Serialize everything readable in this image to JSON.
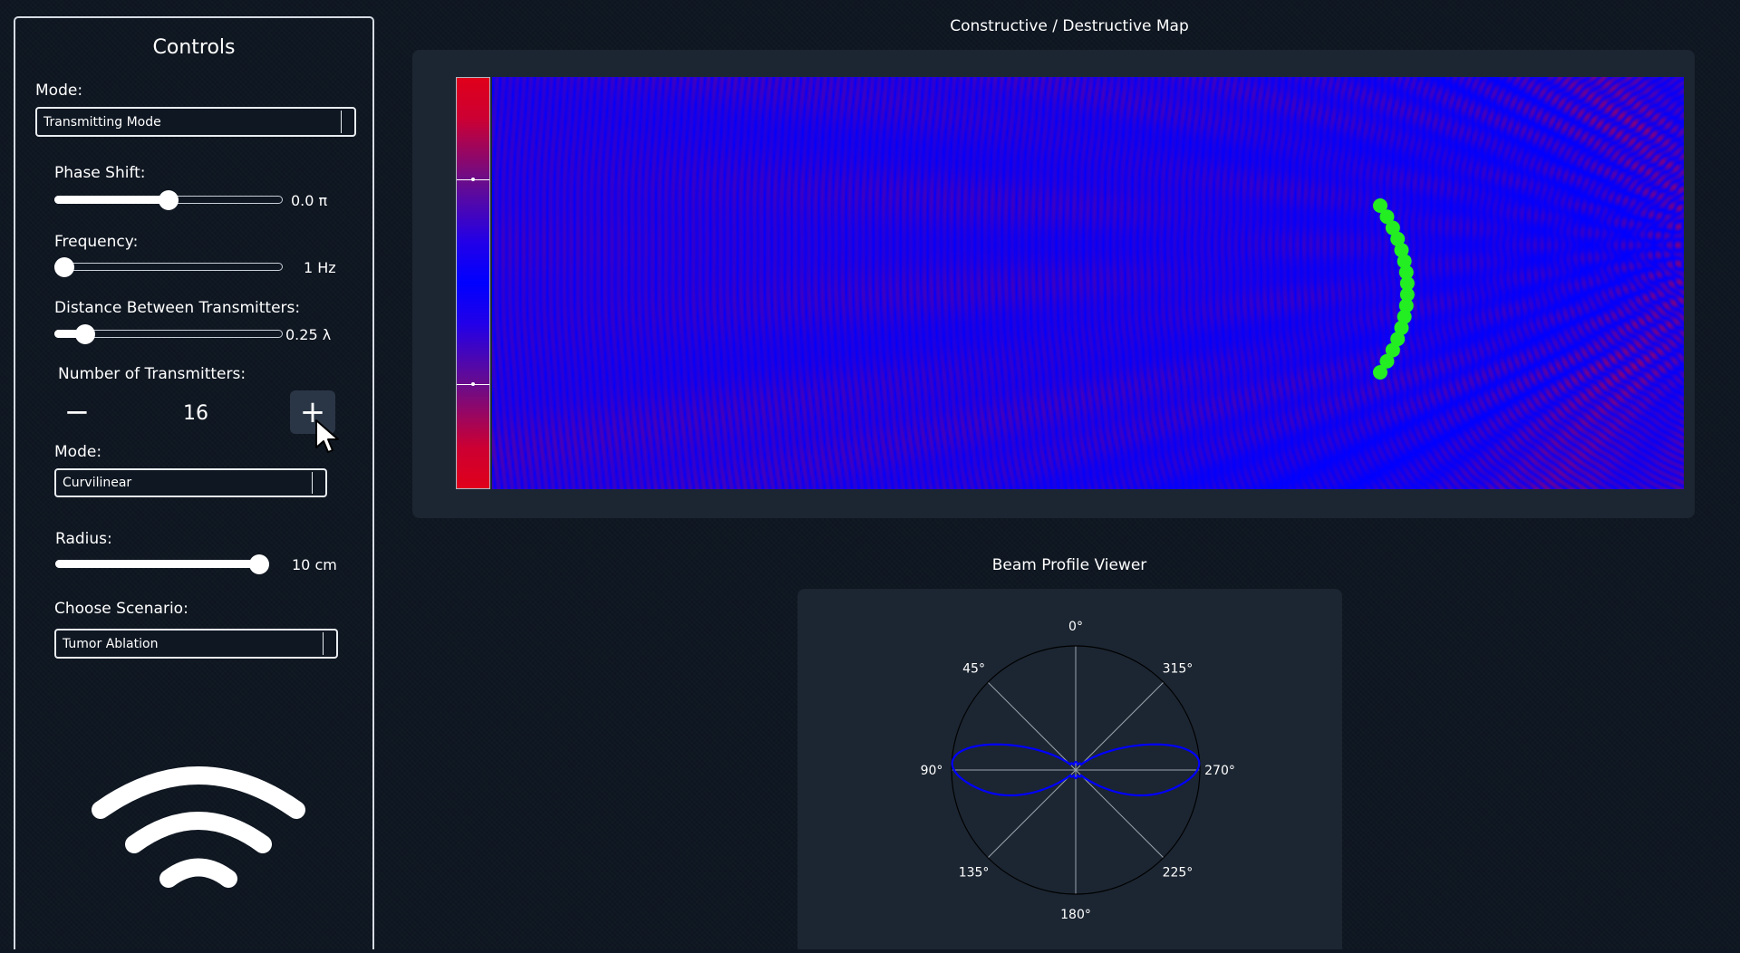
{
  "controls": {
    "title": "Controls",
    "mode_label": "Mode:",
    "mode_value": "Transmitting Mode",
    "phase_shift": {
      "label": "Phase Shift:",
      "value_text": "0.0 π",
      "level": 0.5
    },
    "frequency": {
      "label": "Frequency:",
      "value_text": "1 Hz",
      "level": 0.0
    },
    "distance": {
      "label": "Distance Between Transmitters:",
      "value_text": "0.25 λ",
      "level": 0.1
    },
    "transmitters": {
      "label": "Number of Transmitters:",
      "count": "16",
      "minus": "−",
      "plus": "+"
    },
    "array_mode_label": "Mode:",
    "array_mode_value": "Curvilinear",
    "radius": {
      "label": "Radius:",
      "value_text": "10 cm",
      "level": 1.0
    },
    "scenario_label": "Choose Scenario:",
    "scenario_value": "Tumor Ablation",
    "icon": "wifi-icon"
  },
  "map": {
    "title": "Constructive / Destructive Map",
    "colors": {
      "constructive": "#e0001a",
      "destructive": "#0000ff",
      "transmitter": "#22ee22"
    },
    "transmitter_count": 16
  },
  "beam": {
    "title": "Beam Profile Viewer",
    "angle_labels": [
      "0°",
      "45°",
      "90°",
      "135°",
      "180°",
      "225°",
      "270°",
      "315°"
    ],
    "trace_color": "#0000ff"
  }
}
